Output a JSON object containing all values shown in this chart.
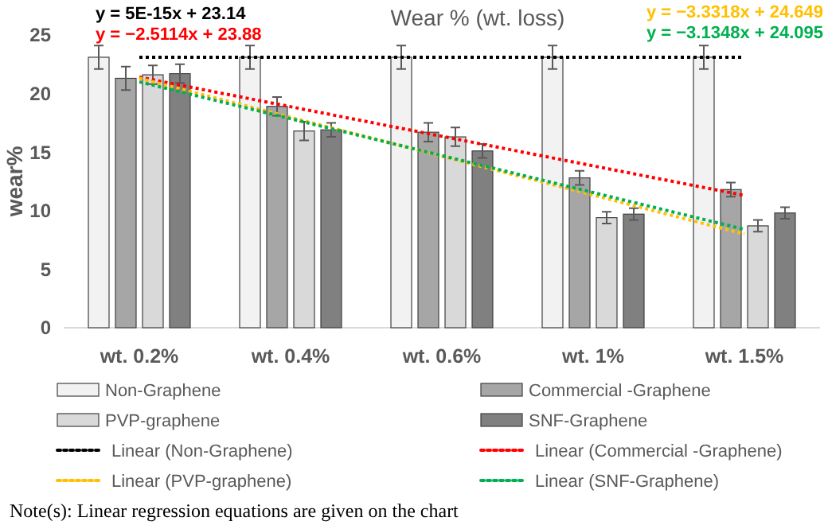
{
  "chart_data": {
    "type": "bar",
    "title": "Wear % (wt. loss)",
    "ylabel": "wear%",
    "categories": [
      "wt. 0.2%",
      "wt. 0.4%",
      "wt. 0.6%",
      "wt. 1%",
      "wt. 1.5%"
    ],
    "series": [
      {
        "name": "Non-Graphene",
        "color": "#f2f2f2",
        "values": [
          23.1,
          23.1,
          23.1,
          23.1,
          23.1
        ],
        "errors": [
          1,
          1,
          1,
          1,
          1
        ]
      },
      {
        "name": "Commercial -Graphene",
        "color": "#a6a6a6",
        "values": [
          21.3,
          18.9,
          16.7,
          12.8,
          11.8
        ],
        "errors": [
          1,
          0.8,
          0.8,
          0.6,
          0.6
        ]
      },
      {
        "name": "PVP-graphene",
        "color": "#d9d9d9",
        "values": [
          21.6,
          16.8,
          16.3,
          9.4,
          8.7
        ],
        "errors": [
          0.8,
          0.8,
          0.8,
          0.5,
          0.5
        ]
      },
      {
        "name": "SNF-Graphene",
        "color": "#808080",
        "values": [
          21.7,
          16.9,
          15.1,
          9.7,
          9.8
        ],
        "errors": [
          0.8,
          0.6,
          0.6,
          0.5,
          0.5
        ]
      },
      {
        "name": "Linear (Non-Graphene)",
        "type": "line",
        "color": "#000000",
        "x": [
          "wt. 0.2%",
          "wt. 1.5%"
        ],
        "values": [
          23.1,
          23.1
        ]
      },
      {
        "name": "Linear (Commercial -Graphene)",
        "type": "line",
        "color": "#ff0000",
        "x": [
          "wt. 0.2%",
          "wt. 1.5%"
        ],
        "values": [
          21.4,
          11.3
        ]
      },
      {
        "name": "Linear (PVP-graphene)",
        "type": "line",
        "color": "#ffc000",
        "x": [
          "wt. 0.2%",
          "wt. 1.5%"
        ],
        "values": [
          21.3,
          8
        ]
      },
      {
        "name": "Linear (SNF-Graphene)",
        "type": "line",
        "color": "#00b050",
        "x": [
          "wt. 0.2%",
          "wt. 1.5%"
        ],
        "values": [
          21,
          8.4
        ]
      }
    ],
    "ylim": [
      0,
      25
    ],
    "yticks": [
      0,
      5,
      10,
      15,
      20,
      25
    ],
    "grid": false,
    "legend": "bottom",
    "line_style": "dotted",
    "annotations": [
      "y = 5E-15x + 23.14",
      "y = −2.5114x + 23.88",
      "y = −3.3318x + 24.649",
      "y = −3.1348x + 24.095",
      "Note(s): Linear regression equations are given on the chart"
    ]
  }
}
